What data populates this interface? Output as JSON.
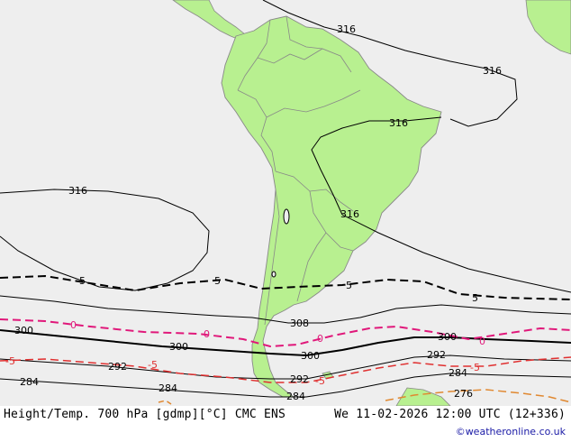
{
  "footer": {
    "left": "Height/Temp. 700 hPa [gdmp][°C] CMC ENS",
    "right": "We 11-02-2026 12:00 UTC (12+336)",
    "credit": "©weatheronline.co.uk"
  },
  "colors": {
    "sea": "#eeeeee",
    "land": "#b8f090",
    "border": "#888888",
    "height_contour": "#000000",
    "temp_0": "#e0187a",
    "temp_minus5": "#e03030",
    "temp_5": "#000000",
    "temp_minus10": "#e08830"
  },
  "contour_labels": {
    "h316": "316",
    "h308": "308",
    "h300": "300",
    "h292": "292",
    "h284": "284",
    "h276": "276",
    "t5": "5",
    "t0": "0",
    "tm5": "-5"
  }
}
